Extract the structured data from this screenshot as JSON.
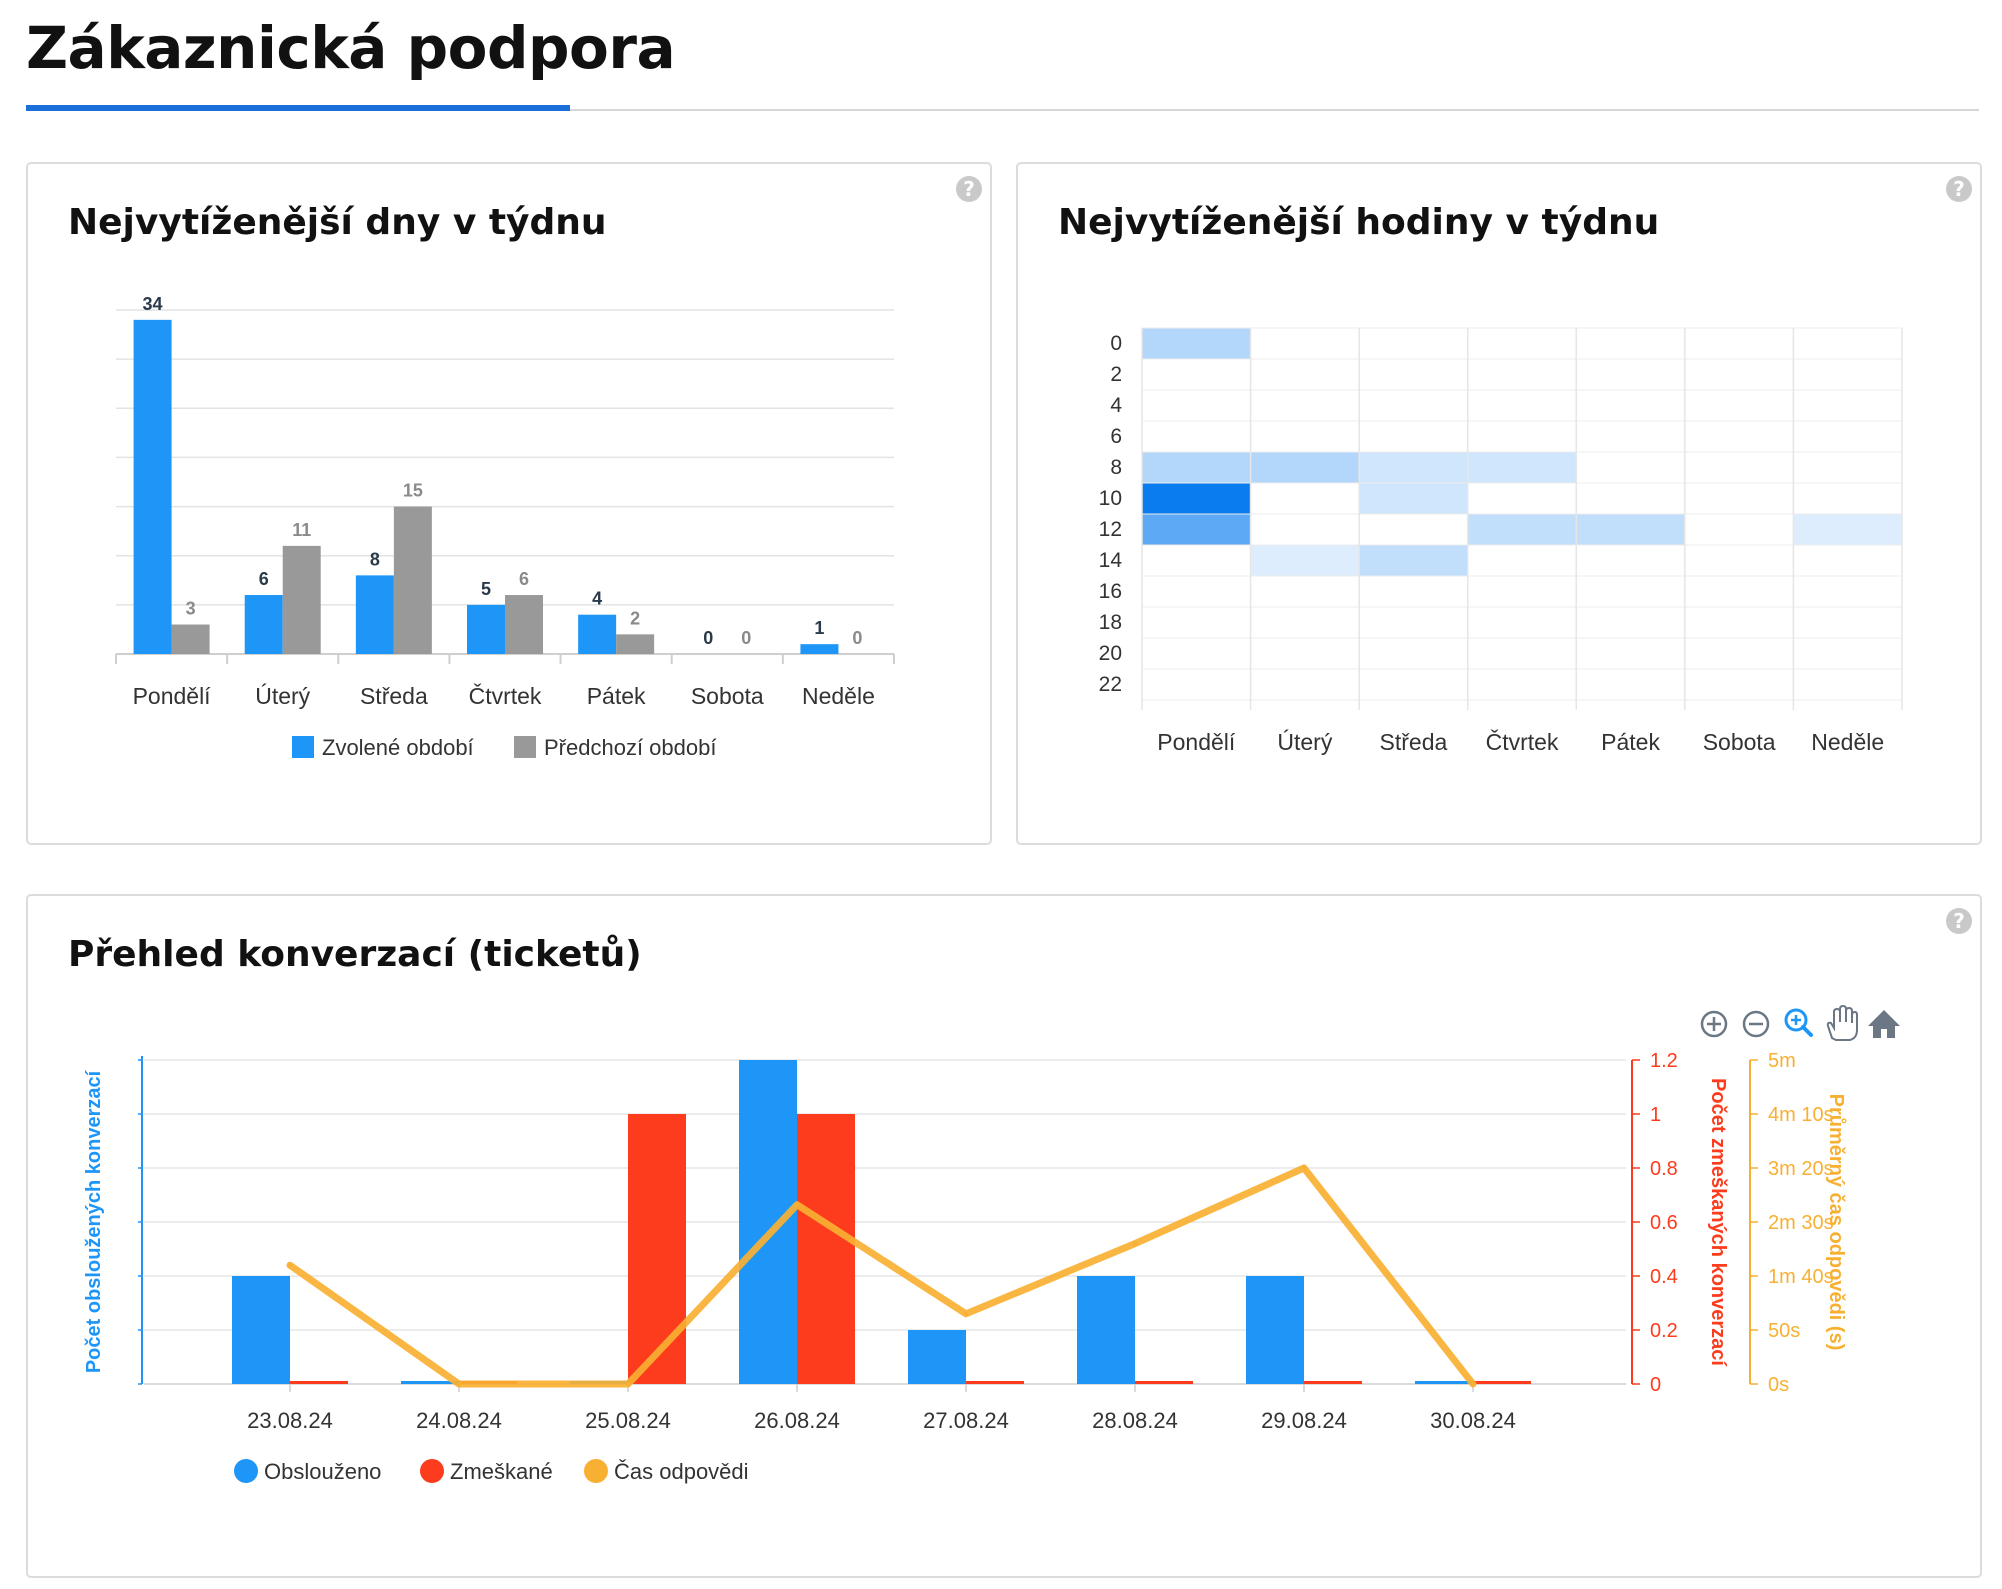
{
  "page": {
    "title": "Zákaznická podpora",
    "help_glyph": "?"
  },
  "colors": {
    "selected": "#1e96f7",
    "previous": "#999999",
    "served": "#1e96f7",
    "missed": "#fc3c1c",
    "response": "#f8b032",
    "accent": "#1a6fd9"
  },
  "panels": {
    "days": {
      "title": "Nejvytíženější dny v týdnu",
      "help_icon": "help-circle-icon"
    },
    "hours": {
      "title": "Nejvytíženější hodiny v týdnu",
      "help_icon": "help-circle-icon"
    },
    "conversations": {
      "title": "Přehled konverzací (ticketů)",
      "help_icon": "help-circle-icon"
    }
  },
  "toolbar": {
    "icons": [
      "zoom-in-icon",
      "zoom-out-icon",
      "zoom-selection-icon",
      "pan-hand-icon",
      "home-icon"
    ]
  },
  "chart_data": [
    {
      "id": "days",
      "type": "bar",
      "title": "Nejvytíženější dny v týdnu",
      "categories": [
        "Pondělí",
        "Úterý",
        "Středa",
        "Čtvrtek",
        "Pátek",
        "Sobota",
        "Neděle"
      ],
      "series": [
        {
          "name": "Zvolené období",
          "values": [
            34,
            6,
            8,
            5,
            4,
            0,
            1
          ]
        },
        {
          "name": "Předchozí období",
          "values": [
            3,
            11,
            15,
            6,
            2,
            0,
            0
          ]
        }
      ],
      "ylim": [
        0,
        35
      ],
      "grid": true,
      "legend": "bottom-center"
    },
    {
      "id": "hours",
      "type": "heatmap",
      "title": "Nejvytíženější hodiny v týdnu",
      "x_categories": [
        "Pondělí",
        "Úterý",
        "Středa",
        "Čtvrtek",
        "Pátek",
        "Sobota",
        "Neděle"
      ],
      "y_categories": [
        "0",
        "2",
        "4",
        "6",
        "8",
        "10",
        "12",
        "14",
        "16",
        "18",
        "20",
        "22"
      ],
      "values": [
        [
          2,
          0,
          0,
          0,
          0,
          0,
          0
        ],
        [
          0,
          0,
          0,
          0,
          0,
          0,
          0
        ],
        [
          0,
          0,
          0,
          0,
          0,
          0,
          0
        ],
        [
          0,
          0,
          0,
          0,
          0,
          0,
          0
        ],
        [
          2,
          2,
          1,
          1,
          0,
          0,
          0
        ],
        [
          8,
          0,
          1,
          0,
          0,
          0,
          0
        ],
        [
          5,
          0,
          0,
          1.5,
          1.5,
          0,
          0.5
        ],
        [
          0,
          0.5,
          1.5,
          0,
          0,
          0,
          0
        ],
        [
          0,
          0,
          0,
          0,
          0,
          0,
          0
        ],
        [
          0,
          0,
          0,
          0,
          0,
          0,
          0
        ],
        [
          0,
          0,
          0,
          0,
          0,
          0,
          0
        ],
        [
          0,
          0,
          0,
          0,
          0,
          0,
          0
        ]
      ]
    },
    {
      "id": "conversations",
      "type": "bar",
      "title": "Přehled konverzací (ticketů)",
      "categories": [
        "23.08.24",
        "24.08.24",
        "25.08.24",
        "26.08.24",
        "27.08.24",
        "28.08.24",
        "29.08.24",
        "30.08.24"
      ],
      "series": [
        {
          "name": "Obslouženo",
          "type": "bar",
          "axis": "left",
          "values": [
            2,
            0,
            0,
            6,
            1,
            2,
            2,
            0
          ]
        },
        {
          "name": "Zmeškané",
          "type": "bar",
          "axis": "right",
          "values": [
            0,
            0,
            1,
            1,
            0,
            0,
            0,
            0
          ]
        },
        {
          "name": "Čas odpovědi",
          "type": "line",
          "axis": "right2",
          "unit": "s",
          "values": [
            110,
            0,
            0,
            166,
            65,
            130,
            200,
            0
          ]
        }
      ],
      "ylabel_left": "Počet obsloužených konverzací",
      "ylabel_right": "Počet zmeškaných konverzací",
      "ylabel_right2": "Průměrný čas odpovědi (s)",
      "ylim_left": [
        0,
        6
      ],
      "ylim_right": [
        0,
        1.2
      ],
      "ylim_right2": [
        0,
        300
      ],
      "right_ticks": [
        "0",
        "0.2",
        "0.4",
        "0.6",
        "0.8",
        "1",
        "1.2"
      ],
      "right2_ticks": [
        "0s",
        "50s",
        "1m 40s",
        "2m 30s",
        "3m 20s",
        "4m 10s",
        "5m"
      ],
      "legend": "bottom-left"
    }
  ]
}
